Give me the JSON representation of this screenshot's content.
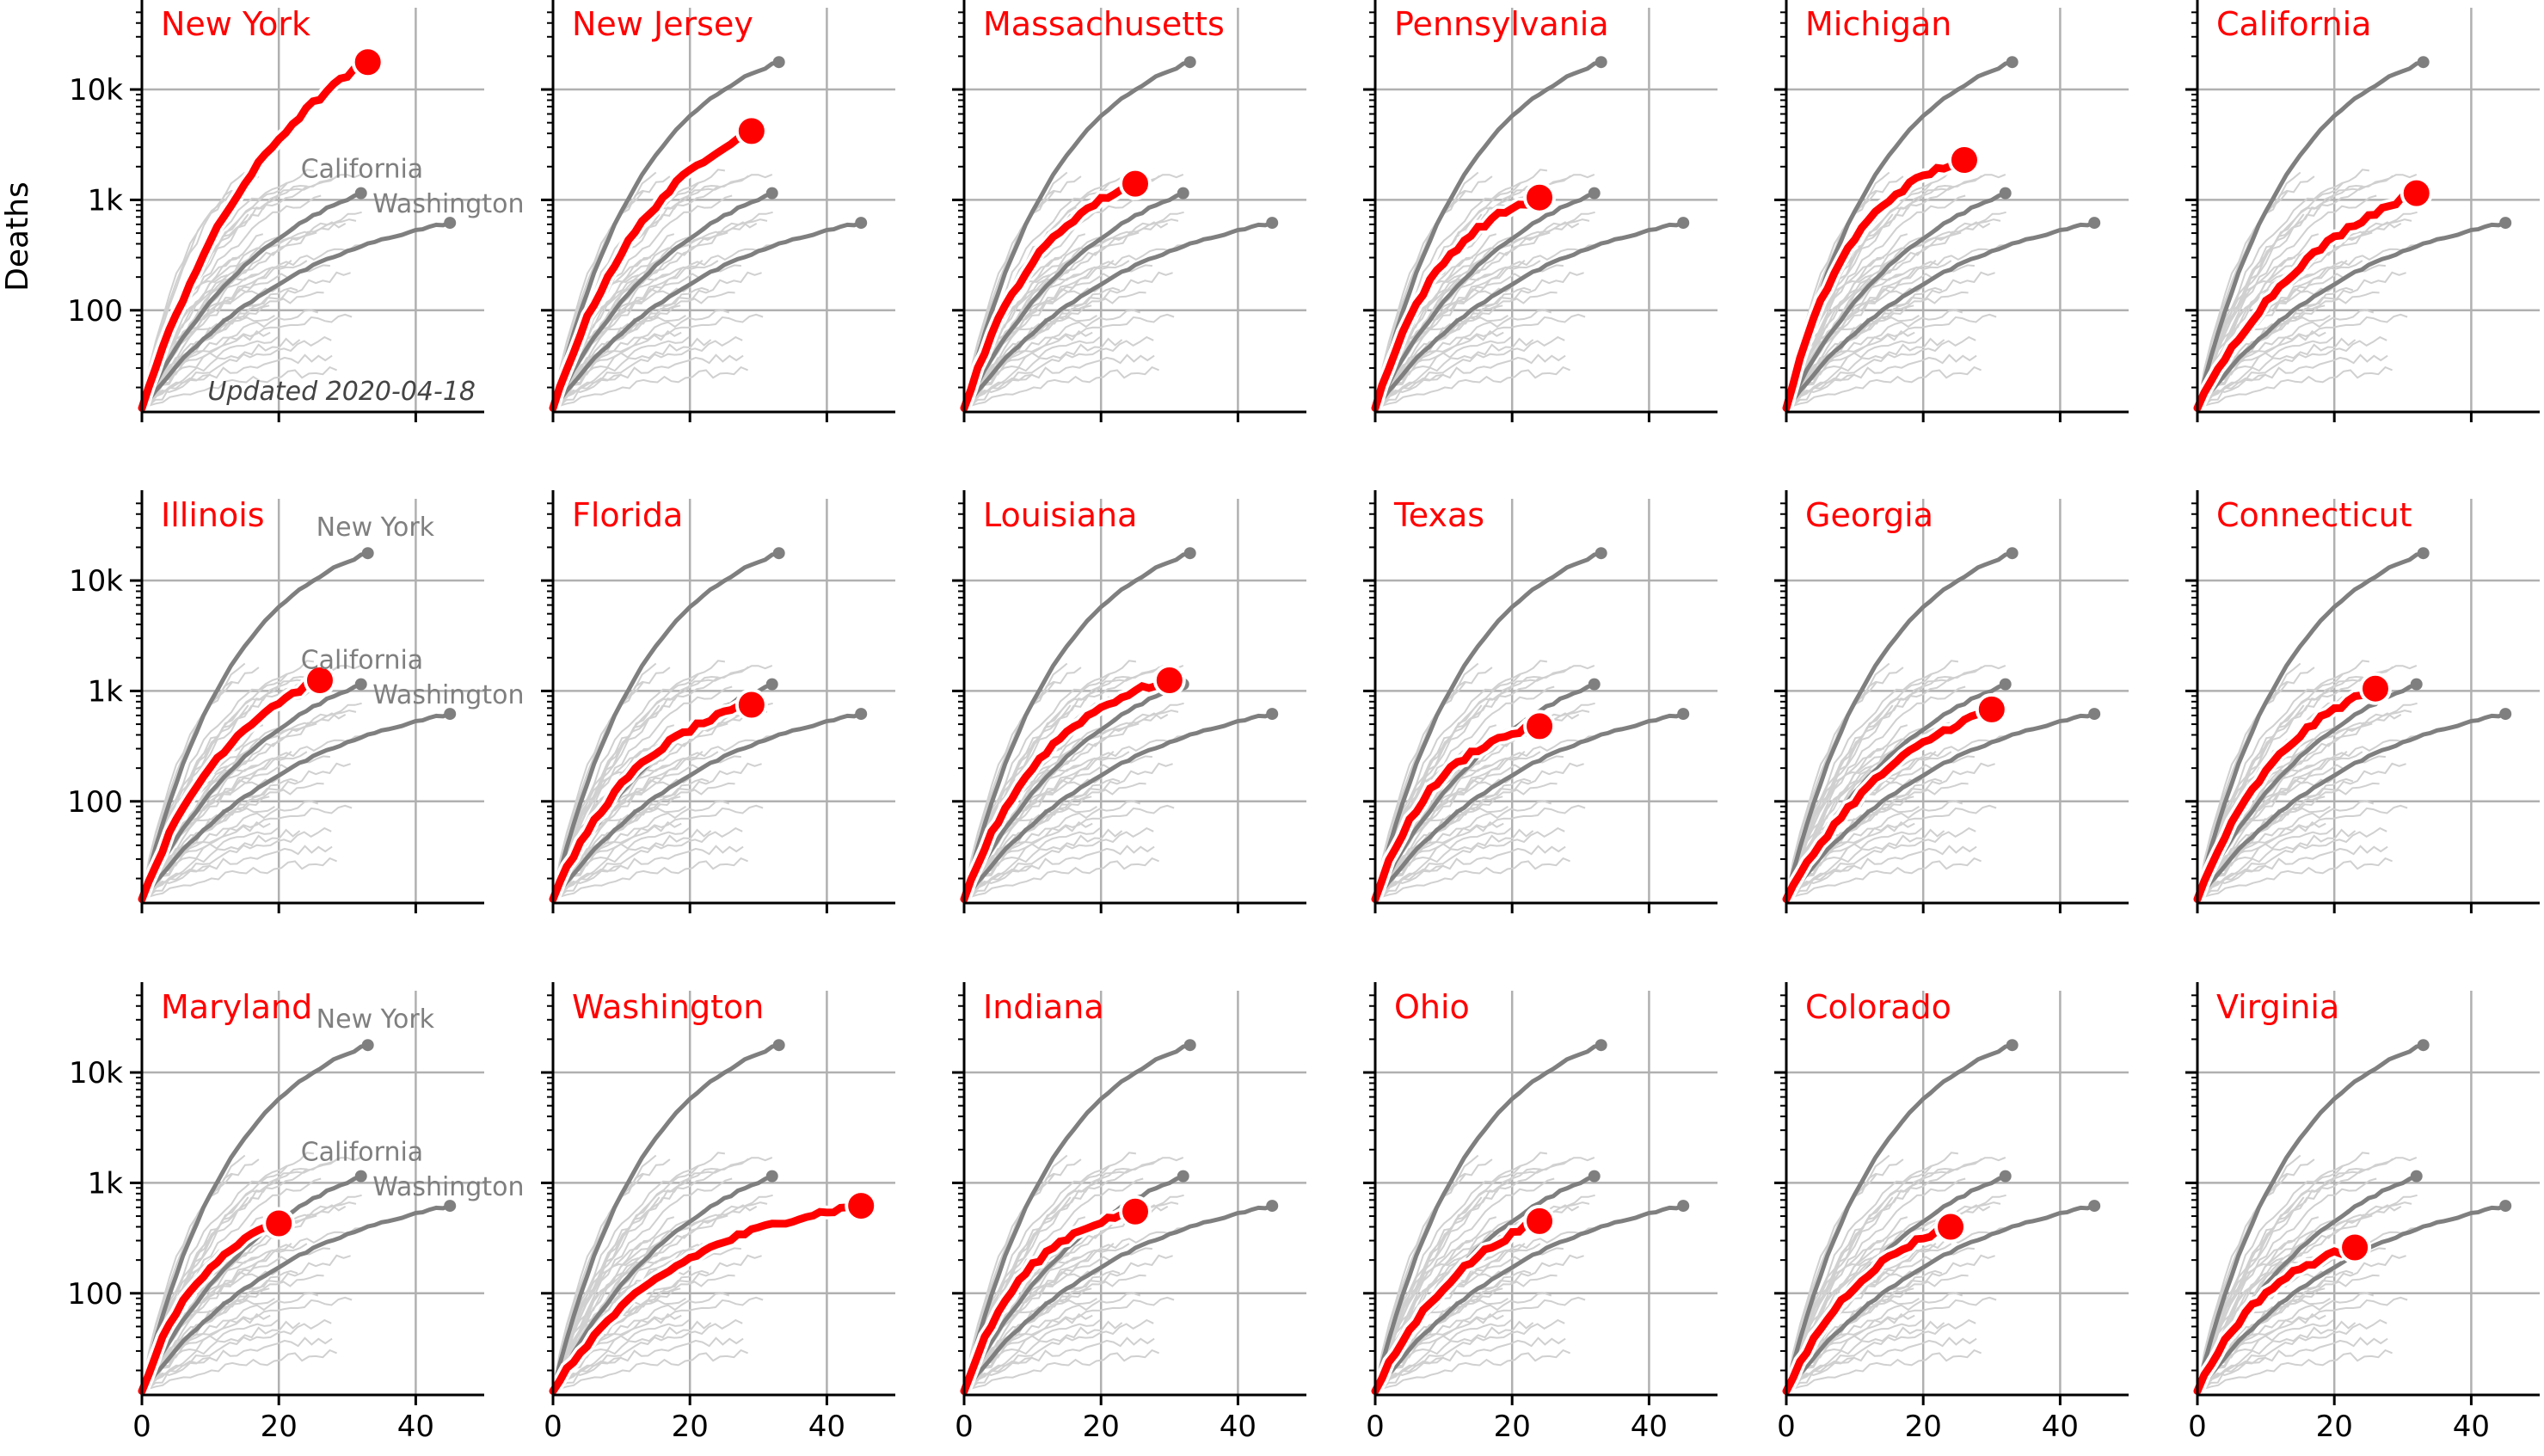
{
  "figure": {
    "ylabel": "Deaths",
    "updated_note": "Updated 2020-04-18",
    "reference_labels": [
      "New York",
      "California",
      "Washington"
    ],
    "colors": {
      "highlight": "#ff0000",
      "reference": "#7f7f7f",
      "background": "#d0d0d0",
      "grid": "#b0b0b0"
    }
  },
  "chart_data": {
    "type": "line",
    "x_axis": {
      "range": [
        0,
        50
      ],
      "ticks": [
        0,
        20,
        40
      ]
    },
    "y_axis": {
      "scale": "log",
      "range": [
        12,
        55000
      ],
      "ticks": [
        100,
        1000,
        10000
      ],
      "tick_labels": [
        "100",
        "1k",
        "10k"
      ]
    },
    "grid": true,
    "reference_series": [
      {
        "name": "New York",
        "days": 33,
        "deaths": 17700
      },
      {
        "name": "California",
        "days": 32,
        "deaths": 1150
      },
      {
        "name": "Washington",
        "days": 45,
        "deaths": 620
      }
    ],
    "panels": [
      {
        "state": "New York",
        "days": 33,
        "deaths": 17700
      },
      {
        "state": "New Jersey",
        "days": 29,
        "deaths": 4200
      },
      {
        "state": "Massachusetts",
        "days": 25,
        "deaths": 1400
      },
      {
        "state": "Pennsylvania",
        "days": 24,
        "deaths": 1050
      },
      {
        "state": "Michigan",
        "days": 26,
        "deaths": 2300
      },
      {
        "state": "California",
        "days": 32,
        "deaths": 1150
      },
      {
        "state": "Illinois",
        "days": 26,
        "deaths": 1250
      },
      {
        "state": "Florida",
        "days": 29,
        "deaths": 750
      },
      {
        "state": "Louisiana",
        "days": 30,
        "deaths": 1250
      },
      {
        "state": "Texas",
        "days": 24,
        "deaths": 480
      },
      {
        "state": "Georgia",
        "days": 30,
        "deaths": 680
      },
      {
        "state": "Connecticut",
        "days": 26,
        "deaths": 1050
      },
      {
        "state": "Maryland",
        "days": 20,
        "deaths": 430
      },
      {
        "state": "Washington",
        "days": 45,
        "deaths": 620
      },
      {
        "state": "Indiana",
        "days": 25,
        "deaths": 550
      },
      {
        "state": "Ohio",
        "days": 24,
        "deaths": 450
      },
      {
        "state": "Colorado",
        "days": 24,
        "deaths": 400
      },
      {
        "state": "Virginia",
        "days": 23,
        "deaths": 260
      }
    ]
  }
}
